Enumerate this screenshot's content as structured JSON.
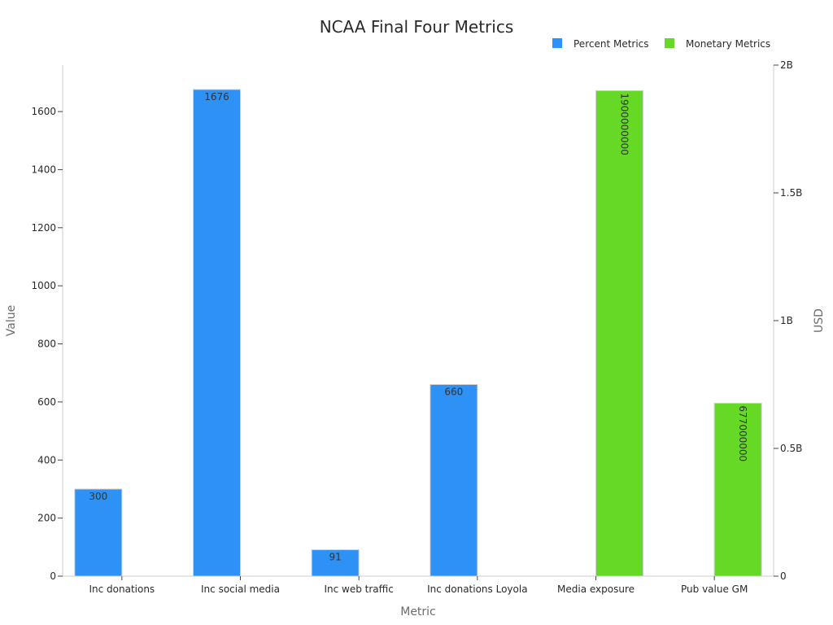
{
  "chart_data": {
    "type": "bar",
    "title": "NCAA Final Four Metrics",
    "xlabel": "Metric",
    "ylabel": "Value",
    "y2label": "USD",
    "categories": [
      "Inc donations",
      "Inc social media",
      "Inc web traffic",
      "Inc donations Loyola",
      "Media exposure",
      "Pub value GM"
    ],
    "ylim": [
      0,
      1760
    ],
    "yticks": [
      0,
      200,
      400,
      600,
      800,
      1000,
      1200,
      1400,
      1600
    ],
    "y2lim": [
      0,
      2000000000
    ],
    "y2ticks": [
      0,
      500000000,
      1000000000,
      1500000000,
      2000000000
    ],
    "y2tick_labels": [
      "0",
      "0.5B",
      "1B",
      "1.5B",
      "2B"
    ],
    "legend_position": "top-right",
    "grid": false,
    "series": [
      {
        "name": "Percent Metrics",
        "axis": "left",
        "color": "#2e91f5",
        "values": [
          300,
          1676,
          91,
          660,
          null,
          null
        ],
        "labels": [
          "300",
          "1676",
          "91",
          "660",
          "",
          ""
        ]
      },
      {
        "name": "Monetary Metrics",
        "axis": "right",
        "color": "#66d926",
        "values": [
          null,
          null,
          null,
          null,
          1900000000,
          677000000
        ],
        "labels": [
          "",
          "",
          "",
          "",
          "1900000000",
          "677000000"
        ]
      }
    ]
  }
}
